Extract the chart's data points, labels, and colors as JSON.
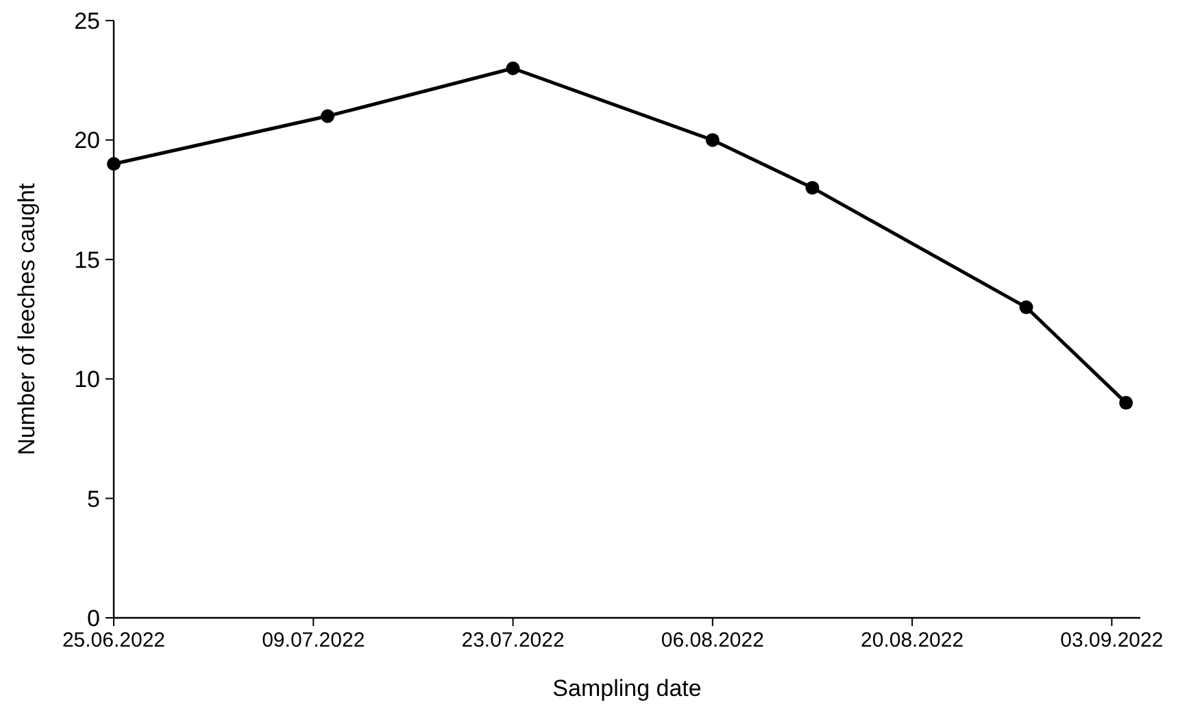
{
  "chart_data": {
    "type": "line",
    "xlabel": "Sampling date",
    "ylabel": "Number of leeches caught",
    "x": [
      "2022-06-25",
      "2022-07-10",
      "2022-07-23",
      "2022-08-06",
      "2022-08-13",
      "2022-08-28",
      "2022-09-04"
    ],
    "series": [
      {
        "color": "#000000",
        "values": [
          19,
          21,
          23,
          20,
          18,
          13,
          9
        ]
      }
    ],
    "xlim": [
      "2022-06-25",
      "2022-09-05"
    ],
    "xticks": [
      {
        "value": "2022-06-25",
        "label": "25.06.2022"
      },
      {
        "value": "2022-07-09",
        "label": "09.07.2022"
      },
      {
        "value": "2022-07-23",
        "label": "23.07.2022"
      },
      {
        "value": "2022-08-06",
        "label": "06.08.2022"
      },
      {
        "value": "2022-08-20",
        "label": "20.08.2022"
      },
      {
        "value": "2022-09-03",
        "label": "03.09.2022"
      }
    ],
    "ylim": [
      0,
      25
    ],
    "yticks": [
      0,
      5,
      10,
      15,
      20,
      25
    ],
    "grid": false,
    "marker": "circle",
    "line_style": "solid"
  }
}
